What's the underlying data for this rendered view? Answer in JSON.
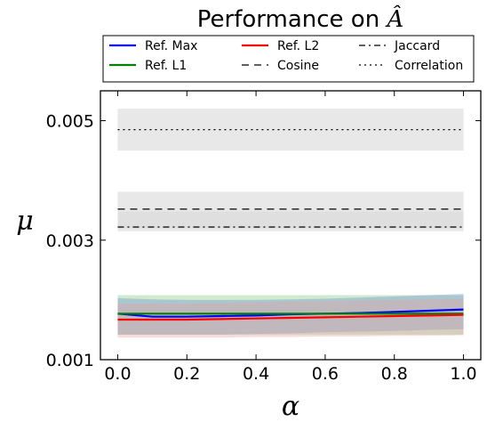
{
  "chart_data": {
    "type": "line",
    "title_text": "Performance on ",
    "title_symbol": "Â",
    "xlabel": "α",
    "ylabel": "μ",
    "xlim": [
      -0.05,
      1.05
    ],
    "ylim": [
      0.001,
      0.0055
    ],
    "xticks": [
      "0.0",
      "0.2",
      "0.4",
      "0.6",
      "0.8",
      "1.0"
    ],
    "xtick_values": [
      0,
      0.2,
      0.4,
      0.6,
      0.8,
      1.0
    ],
    "yticks": [
      "0.001",
      "0.003",
      "0.005"
    ],
    "ytick_values": [
      0.001,
      0.003,
      0.005
    ],
    "legend": {
      "placement": "top-center",
      "columns": 3
    },
    "x": [
      0,
      0.1,
      0.2,
      0.3,
      0.4,
      0.5,
      0.6,
      0.7,
      0.8,
      0.9,
      1.0
    ],
    "series": [
      {
        "name": "Ref. Max",
        "color": "#0000ff",
        "style": "solid",
        "values": [
          0.00177,
          0.00172,
          0.00172,
          0.00173,
          0.00174,
          0.00176,
          0.00177,
          0.00178,
          0.0018,
          0.00182,
          0.00184
        ],
        "band_low": [
          0.00142,
          0.00142,
          0.00142,
          0.00142,
          0.00143,
          0.00144,
          0.00146,
          0.00147,
          0.00148,
          0.0015,
          0.00151
        ],
        "band_high": [
          0.00203,
          0.00201,
          0.002,
          0.002,
          0.002,
          0.00201,
          0.00202,
          0.00204,
          0.00206,
          0.00208,
          0.0021
        ],
        "band_color": "#6f8fcf"
      },
      {
        "name": "Ref. L1",
        "color": "#008000",
        "style": "solid",
        "values": [
          0.00177,
          0.00177,
          0.00177,
          0.00177,
          0.00177,
          0.00177,
          0.00177,
          0.00177,
          0.00177,
          0.00177,
          0.00177
        ],
        "band_low": [
          0.00142,
          0.00142,
          0.00142,
          0.00142,
          0.00142,
          0.00142,
          0.00142,
          0.00142,
          0.00142,
          0.00142,
          0.00142
        ],
        "band_high": [
          0.00208,
          0.00208,
          0.00208,
          0.00208,
          0.00208,
          0.00208,
          0.00208,
          0.00208,
          0.00208,
          0.00208,
          0.00208
        ],
        "band_color": "#80c880"
      },
      {
        "name": "Ref. L2",
        "color": "#ff0000",
        "style": "solid",
        "values": [
          0.00167,
          0.00167,
          0.00167,
          0.00168,
          0.00169,
          0.0017,
          0.00171,
          0.00172,
          0.00173,
          0.00174,
          0.00175
        ],
        "band_low": [
          0.00137,
          0.00137,
          0.00137,
          0.00137,
          0.00138,
          0.00138,
          0.00139,
          0.00139,
          0.0014,
          0.0014,
          0.00141
        ],
        "band_high": [
          0.00194,
          0.00194,
          0.00194,
          0.00195,
          0.00196,
          0.00197,
          0.00198,
          0.00199,
          0.002,
          0.00201,
          0.00202
        ],
        "band_color": "#e8a0a0"
      },
      {
        "name": "Cosine",
        "color": "#000000",
        "style": "dashed",
        "values": [
          0.00352,
          0.00352,
          0.00352,
          0.00352,
          0.00352,
          0.00352,
          0.00352,
          0.00352,
          0.00352,
          0.00352,
          0.00352
        ],
        "band_low": [
          0.0032,
          0.0032,
          0.0032,
          0.0032,
          0.0032,
          0.0032,
          0.0032,
          0.0032,
          0.0032,
          0.0032,
          0.0032
        ],
        "band_high": [
          0.00381,
          0.00381,
          0.00381,
          0.00381,
          0.00381,
          0.00381,
          0.00381,
          0.00381,
          0.00381,
          0.00381,
          0.00381
        ],
        "band_color": "#d8d8d8"
      },
      {
        "name": "Jaccard",
        "color": "#000000",
        "style": "dashdot",
        "values": [
          0.00322,
          0.00322,
          0.00322,
          0.00322,
          0.00322,
          0.00322,
          0.00322,
          0.00322,
          0.00322,
          0.00322,
          0.00322
        ],
        "band_low": [
          0.00315,
          0.00315,
          0.00315,
          0.00315,
          0.00315,
          0.00315,
          0.00315,
          0.00315,
          0.00315,
          0.00315,
          0.00315
        ],
        "band_high": [
          0.00348,
          0.00348,
          0.00348,
          0.00348,
          0.00348,
          0.00348,
          0.00348,
          0.00348,
          0.00348,
          0.00348,
          0.00348
        ],
        "band_color": "#d8d8d8"
      },
      {
        "name": "Correlation",
        "color": "#000000",
        "style": "dotted",
        "values": [
          0.00485,
          0.00485,
          0.00485,
          0.00485,
          0.00485,
          0.00485,
          0.00485,
          0.00485,
          0.00485,
          0.00485,
          0.00485
        ],
        "band_low": [
          0.0045,
          0.0045,
          0.0045,
          0.0045,
          0.0045,
          0.0045,
          0.0045,
          0.0045,
          0.0045,
          0.0045,
          0.0045
        ],
        "band_high": [
          0.0052,
          0.0052,
          0.0052,
          0.0052,
          0.0052,
          0.0052,
          0.0052,
          0.0052,
          0.0052,
          0.0052,
          0.0052
        ],
        "band_color": "#d8d8d8"
      }
    ]
  }
}
